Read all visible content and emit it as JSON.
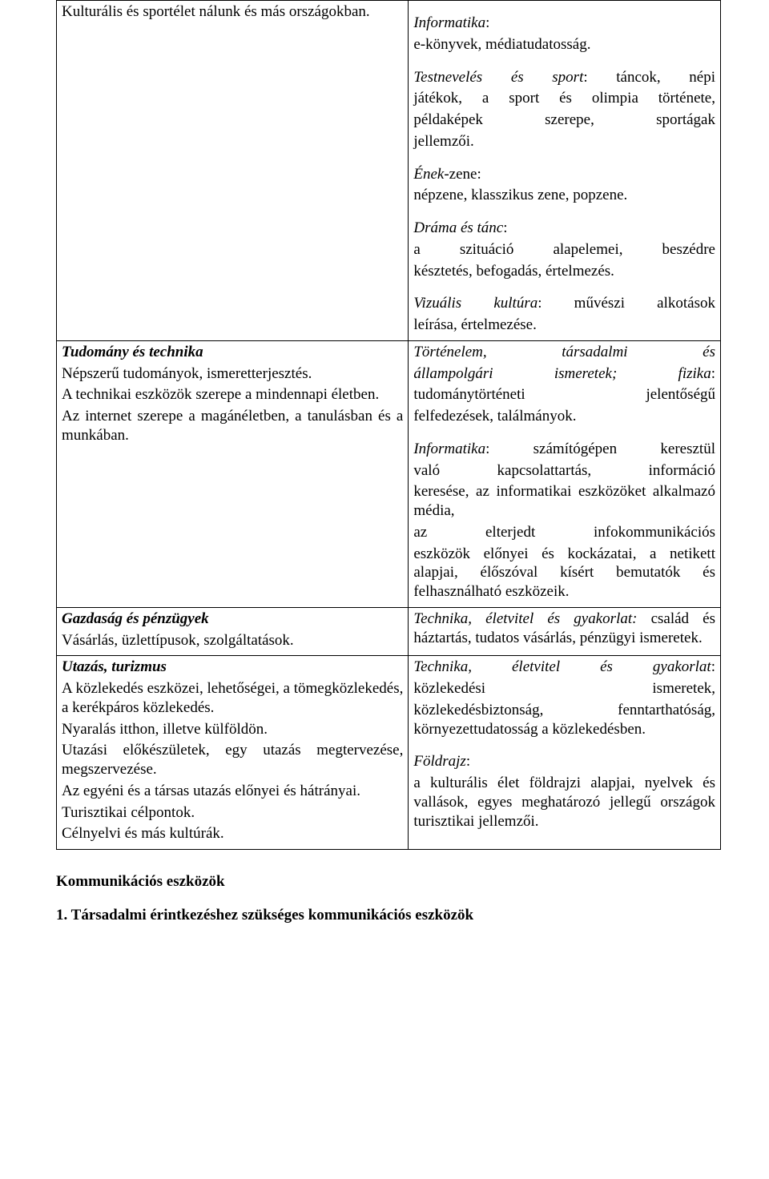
{
  "table": {
    "row1": {
      "left": {
        "line1": "Kulturális és sportélet nálunk és más országokban."
      },
      "right": {
        "info_title": "Informatika",
        "info_text": "e-könyvek, médiatudatosság.",
        "sport_title": "Testnevelés és sport",
        "sport_text1": ": táncok, népi játékok, a sport és olimpia története, példaképek szerepe, sportágak jellemzői.",
        "sport_l1": ": táncok, népi",
        "sport_l2": "játékok, a sport és olimpia története,",
        "sport_l3_a": "példaképek",
        "sport_l3_b": "szerepe,",
        "sport_l3_c": "sportágak",
        "sport_l4": "jellemzői.",
        "enek_title": "Ének",
        "enek_text": "-zene:",
        "enek_body": "népzene, klasszikus zene, popzene.",
        "drama_title": "Dráma és tánc",
        "drama_l1": "a szituáció alapelemei, beszédre",
        "drama_l2": "késztetés, befogadás, értelmezés.",
        "vizualis_title": "Vizuális kultúra",
        "vizualis_l1": ": művészi alkotások",
        "vizualis_l2": "leírása, értelmezése."
      }
    },
    "row2": {
      "left": {
        "title": "Tudomány és technika",
        "l1": "Népszerű tudományok, ismeretterjesztés.",
        "l2": "A technikai eszközök szerepe a mindennapi életben.",
        "l3": "Az internet szerepe a magánéletben, a tanulásban és a munkában."
      },
      "right": {
        "tort_title_a": "Történelem,",
        "tort_title_b": "társadalmi",
        "tort_title_c": "és",
        "tort_title_d": "állampolgári",
        "tort_title_e": "ismeretek;",
        "fizika_label": "fizika",
        "tort_l3_a": "tudománytörténeti",
        "tort_l3_b": "jelentőségű",
        "tort_l3": "felfedezések, találmányok.",
        "info_title": "Informatika",
        "info_l1": ": számítógépen keresztül",
        "info_l2_a": "való",
        "info_l2_b": "kapcsolattartás,",
        "info_l2_c": "információ",
        "info_l3": "keresése, az informatikai eszközöket alkalmazó média,",
        "info_l4_a": "az",
        "info_l4_b": "elterjedt",
        "info_l4_c": "infokommunikációs",
        "info_l5": "eszközök előnyei és kockázatai, a netikett alapjai, élőszóval kísért bemutatók és felhasználható eszközeik."
      }
    },
    "row3": {
      "left": {
        "title": "Gazdaság és pénzügyek",
        "l1": "Vásárlás, üzlettípusok, szolgáltatások."
      },
      "right": {
        "title": "Technika, életvitel és gyakorlat:",
        "text": " család és háztartás, tudatos vásárlás, pénzügyi ismeretek."
      }
    },
    "row4": {
      "left": {
        "title": "Utazás, turizmus",
        "l1": "A közlekedés eszközei, lehetőségei, a tömegközlekedés, a kerékpáros közlekedés.",
        "l2": "Nyaralás itthon, illetve külföldön.",
        "l3": "Utazási előkészületek, egy utazás megtervezése, megszervezése.",
        "l4": "Az egyéni és a társas utazás előnyei és hátrányai.",
        "l5": "Turisztikai célpontok.",
        "l6": "Célnyelvi és más kultúrák."
      },
      "right": {
        "tech_title": "Technika, életvitel és gyakorlat",
        "tech_l1_a": "közlekedési",
        "tech_l1_b": "ismeretek,",
        "tech_l2": "közlekedésbiztonság, fenntarthatóság, környezettudatosság a közlekedésben.",
        "foldrajz_title": "Földrajz",
        "foldrajz_l1": "a kulturális élet földrajzi alapjai, nyelvek és vallások, egyes meghatározó jellegű országok turisztikai jellemzői."
      }
    }
  },
  "footer": {
    "heading1": "Kommunikációs eszközök",
    "heading2": "1. Társadalmi érintkezéshez szükséges kommunikációs eszközök"
  }
}
